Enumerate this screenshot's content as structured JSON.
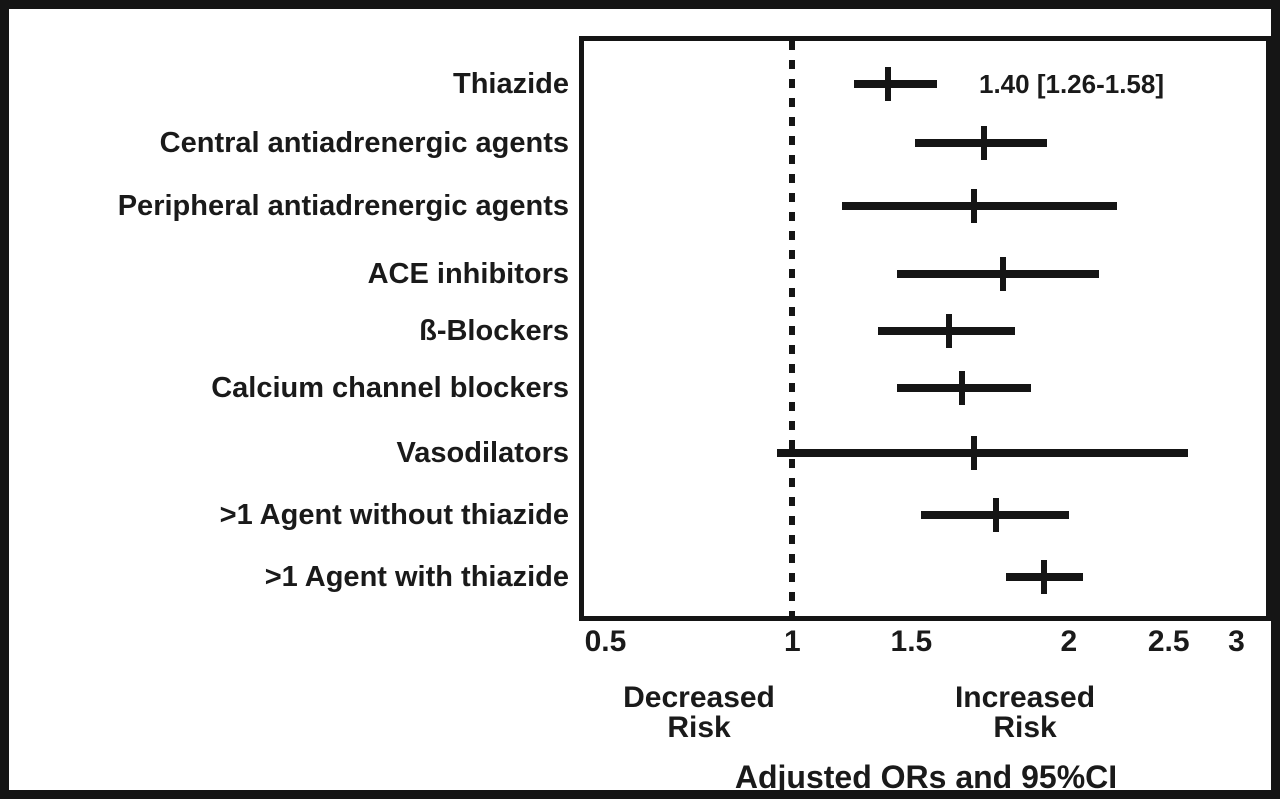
{
  "figure": {
    "caption": "Adjusted ORs and 95%CI",
    "decreased_risk": [
      "Decreased",
      "Risk"
    ],
    "increased_risk": [
      "Increased",
      "Risk"
    ],
    "colors": {
      "ink": "#151515",
      "background": "#ffffff"
    }
  },
  "chart_data": {
    "type": "scatter",
    "subtype": "forest-plot",
    "title": "",
    "xlabel": "Adjusted ORs and 95%CI",
    "legend": "none",
    "grid": false,
    "x_axis": {
      "tick_labels": [
        "0.5",
        "1",
        "1.5",
        "2",
        "2.5",
        "3"
      ],
      "tick_values": [
        0.5,
        1,
        1.5,
        2,
        2.5,
        3
      ],
      "tick_positions_pct": [
        46.6,
        61.2,
        70.5,
        82.8,
        90.6,
        95.9
      ],
      "range_shown": [
        0.5,
        3
      ],
      "reference_line": {
        "value": 1,
        "style": "dotted"
      }
    },
    "region_labels": {
      "left": "Decreased Risk",
      "right": "Increased Risk"
    },
    "rows": [
      {
        "label": "Thiazide",
        "or": 1.4,
        "ci_low": 1.26,
        "ci_high": 1.58,
        "annotation": "1.40 [1.26-1.58]"
      },
      {
        "label": "Central antiadrenergic agents",
        "or": 1.73,
        "ci_low": 1.51,
        "ci_high": 1.93
      },
      {
        "label": "Peripheral antiadrenergic agents",
        "or": 1.7,
        "ci_low": 1.21,
        "ci_high": 2.24
      },
      {
        "label": "ACE inhibitors",
        "or": 1.79,
        "ci_low": 1.44,
        "ci_high": 2.15
      },
      {
        "label": "ß-Blockers",
        "or": 1.62,
        "ci_low": 1.36,
        "ci_high": 1.83
      },
      {
        "label": "Calcium channel blockers",
        "or": 1.66,
        "ci_low": 1.44,
        "ci_high": 1.88
      },
      {
        "label": "Vasodilators",
        "or": 1.7,
        "ci_low": 0.96,
        "ci_high": 2.64
      },
      {
        "label": ">1 Agent without thiazide",
        "or": 1.77,
        "ci_low": 1.53,
        "ci_high": 2.0
      },
      {
        "label": ">1 Agent with thiazide",
        "or": 1.92,
        "ci_low": 1.8,
        "ci_high": 2.07
      }
    ]
  }
}
